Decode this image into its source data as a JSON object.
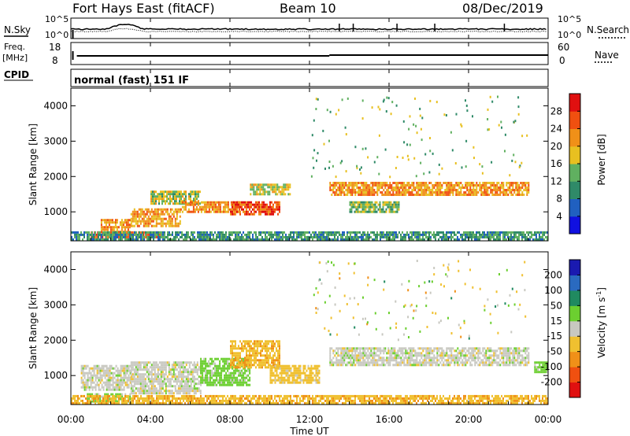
{
  "header": {
    "station": "Fort Hays East (fitACF)",
    "beam": "Beam 10",
    "date": "08/Dec/2019"
  },
  "mode_text": "normal (fast) 151 IF",
  "strip_labels": {
    "nsky": "N.Sky",
    "nsearch": "N.Search",
    "freq_line1": "Freq.",
    "freq_line2": "[MHz]",
    "nave": "Nave",
    "cpid": "CPID",
    "noise_ticks": [
      "10^5",
      "10^0"
    ],
    "freq_ticks": [
      "18",
      "8"
    ],
    "nave_ticks": [
      "60",
      "0"
    ]
  },
  "x_axis": {
    "label": "Time UT",
    "ticks": [
      "00:00",
      "04:00",
      "08:00",
      "12:00",
      "16:00",
      "20:00",
      "00:00"
    ],
    "range_hours": [
      0,
      24
    ]
  },
  "y_axis": {
    "label": "Slant Range [km]",
    "ticks": [
      "1000",
      "2000",
      "3000",
      "4000"
    ],
    "tick_values": [
      1000,
      2000,
      3000,
      4000
    ],
    "range_km": [
      180,
      4500
    ]
  },
  "power_colorbar": {
    "label": "Power [dB]",
    "ticks": [
      "4",
      "8",
      "12",
      "16",
      "20",
      "24",
      "28"
    ],
    "colors": [
      "#1010e0",
      "#2060c0",
      "#2f8a68",
      "#60b060",
      "#e8c020",
      "#f09018",
      "#f05010",
      "#e01010"
    ]
  },
  "velocity_colorbar": {
    "label": "Velocity [m s",
    "label_sup": "-1",
    "label_end": "]",
    "ticks": [
      "200",
      "100",
      "50",
      "15",
      "-15",
      "-50",
      "-100",
      "-200"
    ],
    "colors": [
      "#1a1ab0",
      "#2a6ac0",
      "#208a60",
      "#6ccf30",
      "#c8c8c0",
      "#f0c030",
      "#f09018",
      "#f05010",
      "#e01010"
    ]
  },
  "chart_data": [
    {
      "type": "heatmap",
      "title": "Power [dB]",
      "xlabel": "Time UT",
      "ylabel": "Slant Range [km]",
      "x_range_hours": [
        0,
        24
      ],
      "y_range_km": [
        180,
        4500
      ],
      "color_range_db": [
        0,
        30
      ],
      "regions": [
        {
          "t": [
            1.0,
            4.5
          ],
          "r": [
            250,
            450
          ],
          "db": 27
        },
        {
          "t": [
            1.5,
            3.0
          ],
          "r": [
            450,
            800
          ],
          "db": 22
        },
        {
          "t": [
            3.0,
            5.5
          ],
          "r": [
            600,
            1100
          ],
          "db": 21
        },
        {
          "t": [
            4.0,
            6.5
          ],
          "r": [
            1200,
            1600
          ],
          "db": 16
        },
        {
          "t": [
            5.5,
            8.5
          ],
          "r": [
            1000,
            1300
          ],
          "db": 22
        },
        {
          "t": [
            8.0,
            10.5
          ],
          "r": [
            900,
            1300
          ],
          "db": 26
        },
        {
          "t": [
            9.0,
            11.0
          ],
          "r": [
            1500,
            1800
          ],
          "db": 17
        },
        {
          "t": [
            13.0,
            23.0
          ],
          "r": [
            1450,
            1850
          ],
          "db": 22
        },
        {
          "t": [
            14.0,
            16.5
          ],
          "r": [
            1000,
            1300
          ],
          "db": 15
        },
        {
          "t": [
            0.0,
            24.0
          ],
          "r": [
            200,
            450
          ],
          "db": 11
        }
      ]
    },
    {
      "type": "heatmap",
      "title": "Velocity [m s-1]",
      "xlabel": "Time UT",
      "ylabel": "Slant Range [km]",
      "x_range_hours": [
        0,
        24
      ],
      "y_range_km": [
        180,
        4500
      ],
      "color_range_ms": [
        -250,
        250
      ],
      "regions": [
        {
          "t": [
            0.8,
            3.0
          ],
          "r": [
            250,
            500
          ],
          "ms": 30
        },
        {
          "t": [
            0.5,
            3.0
          ],
          "r": [
            600,
            1300
          ],
          "ms": 0
        },
        {
          "t": [
            3.0,
            6.5
          ],
          "r": [
            500,
            1400
          ],
          "ms": 0
        },
        {
          "t": [
            6.5,
            9.0
          ],
          "r": [
            700,
            1500
          ],
          "ms": 30
        },
        {
          "t": [
            8.0,
            10.5
          ],
          "r": [
            1200,
            2000
          ],
          "ms": -40
        },
        {
          "t": [
            10.0,
            12.5
          ],
          "r": [
            800,
            1300
          ],
          "ms": -30
        },
        {
          "t": [
            13.0,
            23.0
          ],
          "r": [
            1300,
            1800
          ],
          "ms": 0
        },
        {
          "t": [
            23.3,
            24.0
          ],
          "r": [
            1100,
            1400
          ],
          "ms": 30
        },
        {
          "t": [
            0.0,
            24.0
          ],
          "r": [
            200,
            450
          ],
          "ms": -40
        }
      ]
    }
  ]
}
